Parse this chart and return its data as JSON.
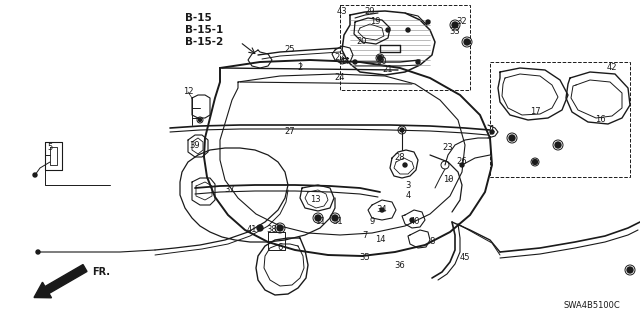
{
  "background_color": "#ffffff",
  "diagram_color": "#1a1a1a",
  "fig_width": 6.4,
  "fig_height": 3.19,
  "dpi": 100,
  "watermark": "SWA4B5100C",
  "xlim": [
    0,
    640
  ],
  "ylim": [
    0,
    319
  ]
}
